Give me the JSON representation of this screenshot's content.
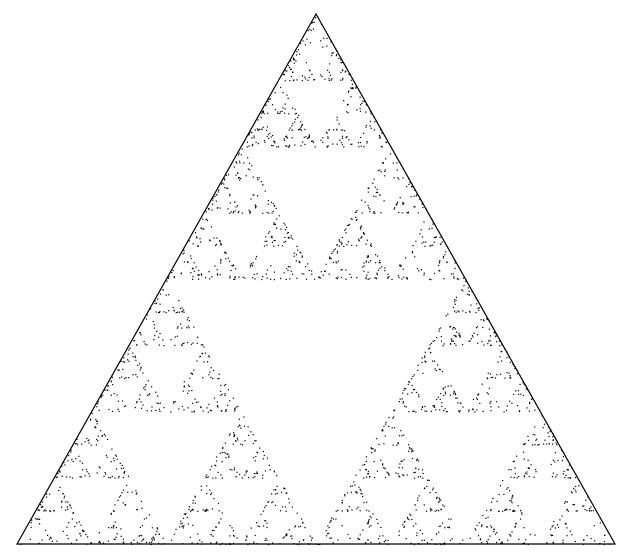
{
  "figure": {
    "kind": "chaos-game-sierpinski-triangle",
    "vertex_names": [
      "top-vertex",
      "bottom-left-vertex",
      "bottom-right-vertex"
    ],
    "point_count": 2500,
    "fractal_depth": 7,
    "colors": {
      "background": "#ffffff",
      "outline": "#000000",
      "points": "#000000"
    }
  }
}
